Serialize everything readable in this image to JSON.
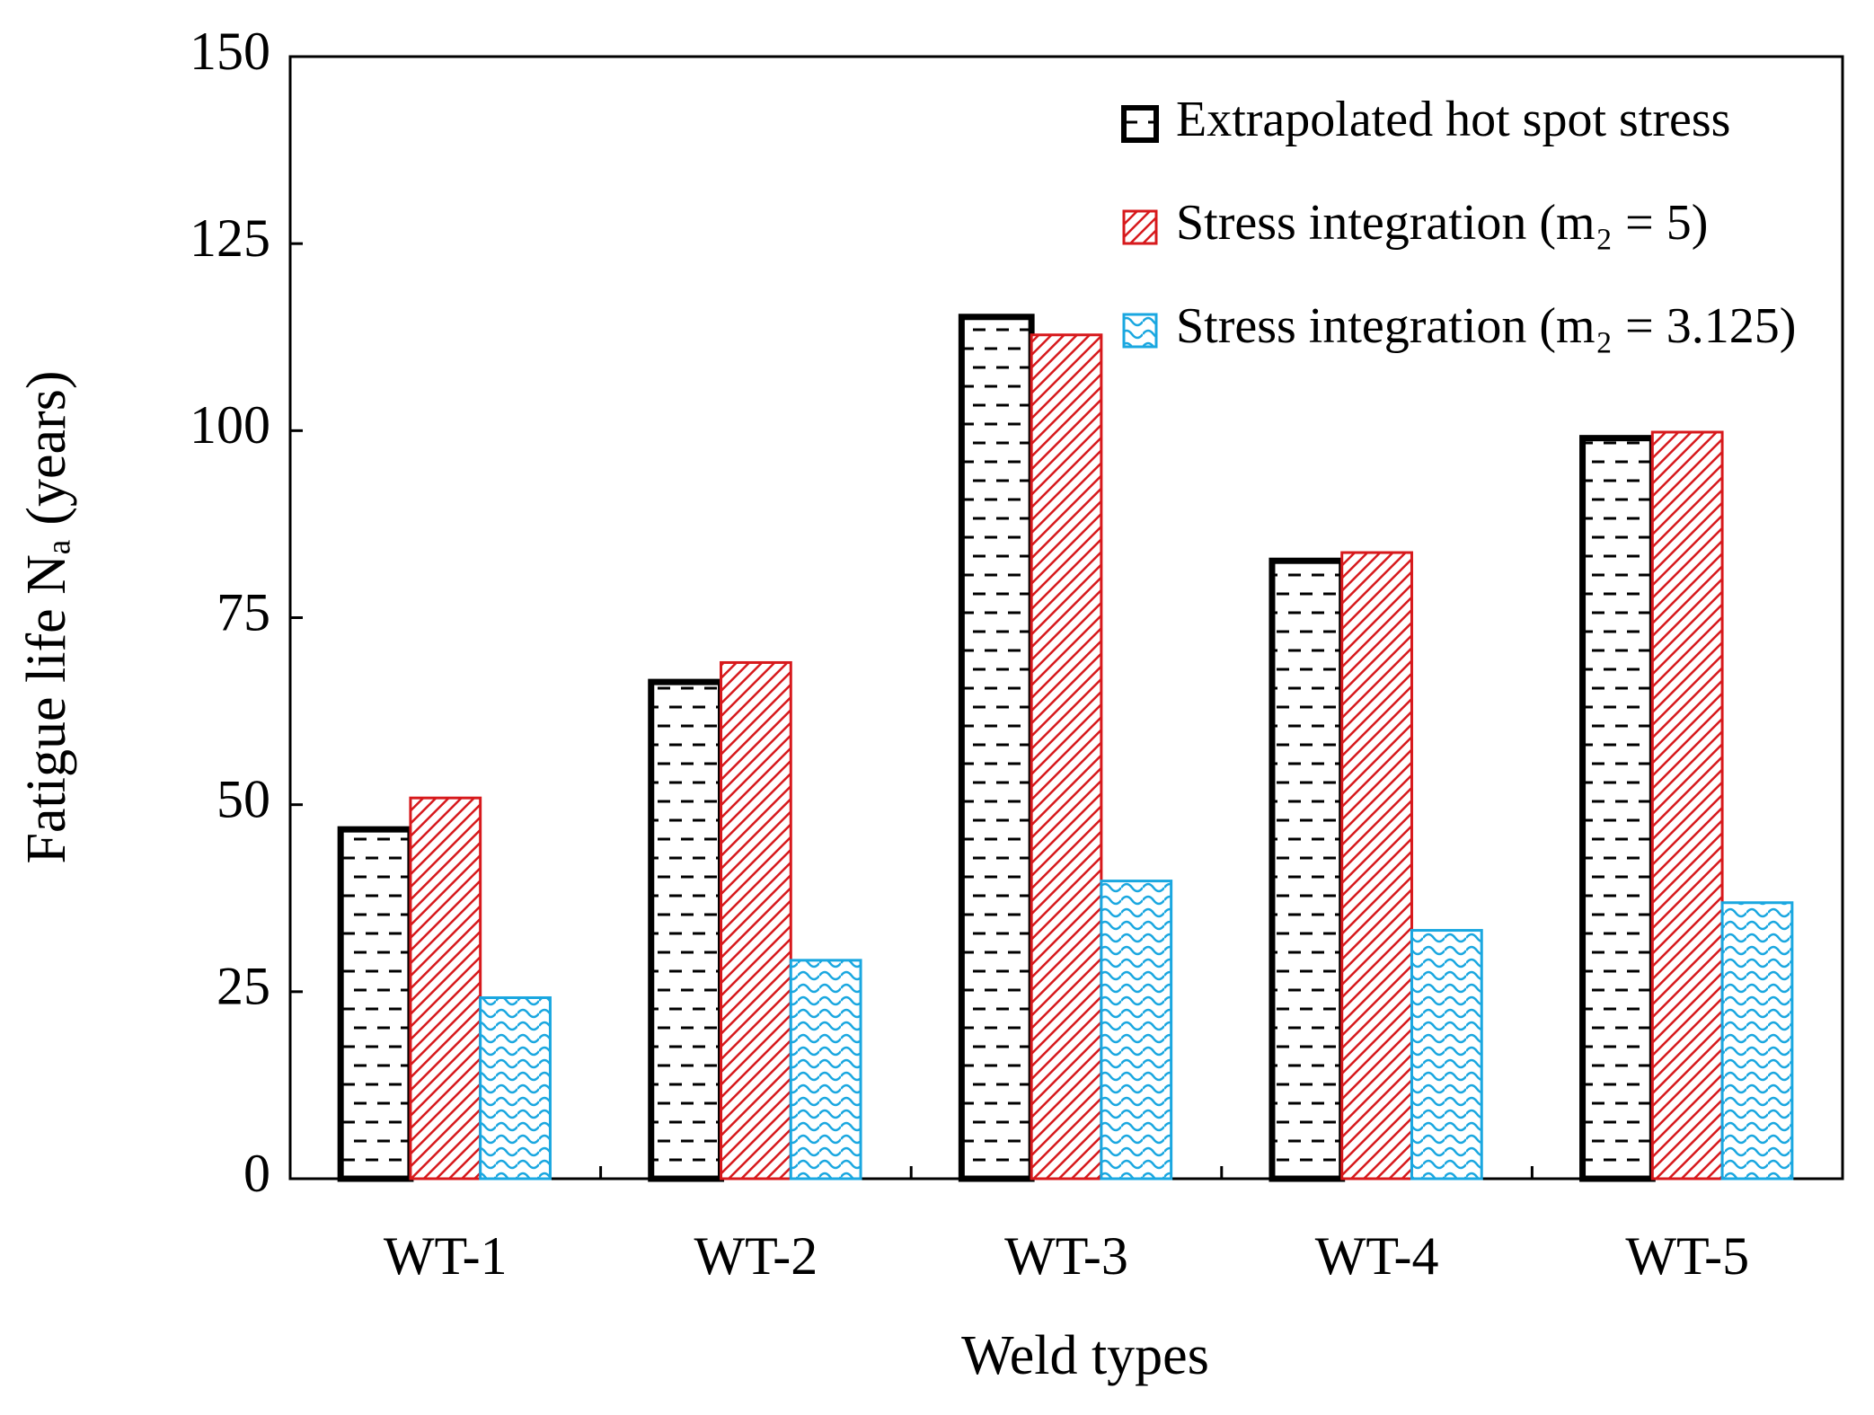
{
  "chart_data": {
    "type": "bar",
    "xlabel": "Weld types",
    "ylabel": "Fatigue life Nₐ (years)",
    "categories": [
      "WT-1",
      "WT-2",
      "WT-3",
      "WT-4",
      "WT-5"
    ],
    "series": [
      {
        "name": "Extrapolated hot spot stress",
        "color": "#000000",
        "values": [
          46.7,
          66.4,
          115.2,
          82.6,
          99.0
        ]
      },
      {
        "name": "Stress integration (m₂ = 5)",
        "color": "#d7191c",
        "values": [
          50.9,
          69.0,
          112.8,
          83.7,
          99.8
        ]
      },
      {
        "name": "Stress integration (m₂ = 3.125)",
        "color": "#1aa7e0",
        "values": [
          24.2,
          29.2,
          39.8,
          33.2,
          36.9
        ]
      }
    ],
    "ylim": [
      0,
      150
    ],
    "yticks": [
      0,
      25,
      50,
      75,
      100,
      125,
      150
    ],
    "grid": false,
    "legend": "upper right"
  }
}
